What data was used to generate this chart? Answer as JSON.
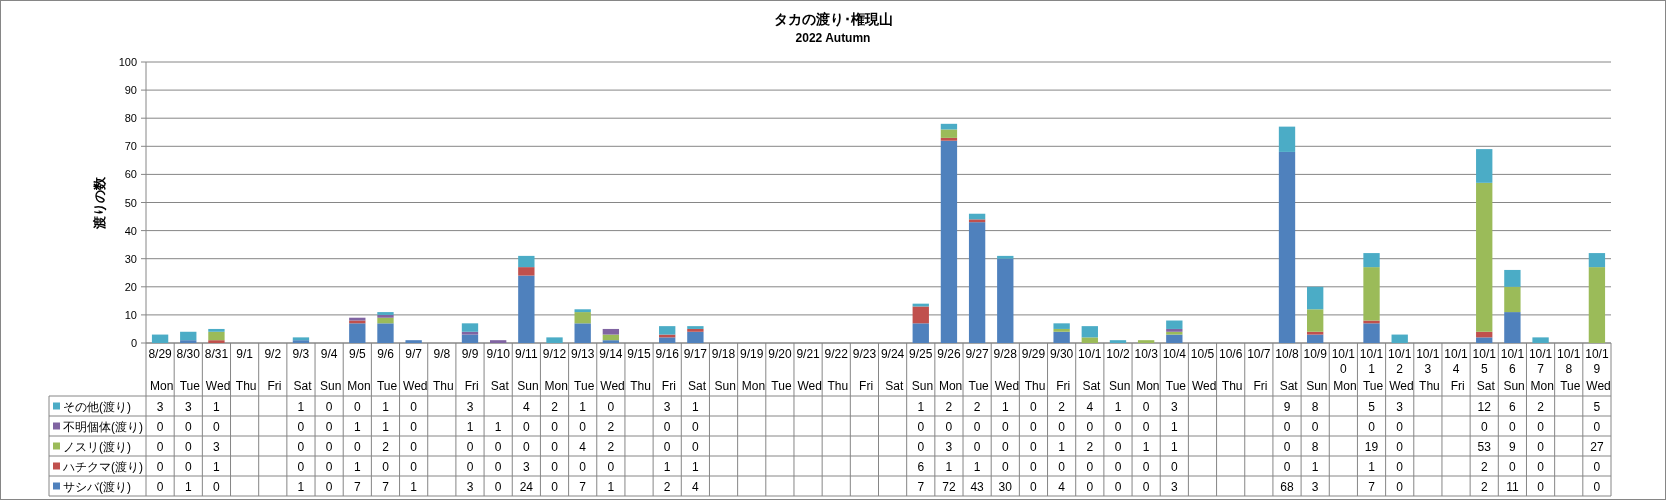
{
  "chart_data": {
    "type": "bar",
    "title": "タカの渡り･権現山",
    "subtitle": "2022 Autumn",
    "ylabel": "渡りの数",
    "stacked": true,
    "categories": [
      "8/29 Mon",
      "8/30 Tue",
      "8/31 Wed",
      "9/1 Thu",
      "9/2 Fri",
      "9/3 Sat",
      "9/4 Sun",
      "9/5 Mon",
      "9/6 Tue",
      "9/7 Wed",
      "9/8 Thu",
      "9/9 Fri",
      "9/10 Sat",
      "9/11 Sun",
      "9/12 Mon",
      "9/13 Tue",
      "9/14 Wed",
      "9/15 Thu",
      "9/16 Fri",
      "9/17 Sat",
      "9/18 Sun",
      "9/19 Mon",
      "9/20 Tue",
      "9/21 Wed",
      "9/22 Thu",
      "9/23 Fri",
      "9/24 Sat",
      "9/25 Sun",
      "9/26 Mon",
      "9/27 Tue",
      "9/28 Wed",
      "9/29 Thu",
      "9/30 Fri",
      "10/1 Sat",
      "10/2 Sun",
      "10/3 Mon",
      "10/4 Tue",
      "10/5 Wed",
      "10/6 Thu",
      "10/7 Fri",
      "10/8 Sat",
      "10/9 Sun",
      "10/10 Mon",
      "10/11 Tue",
      "10/12 Wed",
      "10/13 Thu",
      "10/14 Fri",
      "10/15 Sat",
      "10/16 Sun",
      "10/17 Mon",
      "10/18 Tue",
      "10/19 Wed"
    ],
    "series": [
      {
        "name": "サシバ(渡り)",
        "color": "#4f81bd",
        "values": [
          0,
          1,
          0,
          null,
          null,
          1,
          0,
          7,
          7,
          1,
          null,
          3,
          0,
          24,
          0,
          7,
          1,
          null,
          2,
          4,
          null,
          null,
          null,
          null,
          null,
          null,
          null,
          7,
          72,
          43,
          30,
          0,
          4,
          0,
          0,
          0,
          3,
          null,
          null,
          null,
          68,
          3,
          null,
          7,
          0,
          null,
          null,
          2,
          11,
          0,
          null,
          0
        ]
      },
      {
        "name": "ハチクマ(渡り)",
        "color": "#c0504d",
        "values": [
          0,
          0,
          1,
          null,
          null,
          0,
          0,
          1,
          0,
          0,
          null,
          0,
          0,
          3,
          0,
          0,
          0,
          null,
          1,
          1,
          null,
          null,
          null,
          null,
          null,
          null,
          null,
          6,
          1,
          1,
          0,
          0,
          0,
          0,
          0,
          0,
          0,
          null,
          null,
          null,
          0,
          1,
          null,
          1,
          0,
          null,
          null,
          2,
          0,
          0,
          null,
          0
        ]
      },
      {
        "name": "ノスリ(渡り)",
        "color": "#9bbb59",
        "values": [
          0,
          0,
          3,
          null,
          null,
          0,
          0,
          0,
          2,
          0,
          null,
          0,
          0,
          0,
          0,
          4,
          2,
          null,
          0,
          0,
          null,
          null,
          null,
          null,
          null,
          null,
          null,
          0,
          3,
          0,
          0,
          0,
          1,
          2,
          0,
          1,
          1,
          null,
          null,
          null,
          0,
          8,
          null,
          19,
          0,
          null,
          null,
          53,
          9,
          0,
          null,
          27
        ]
      },
      {
        "name": "不明個体(渡り)",
        "color": "#8064a2",
        "values": [
          0,
          0,
          0,
          null,
          null,
          0,
          0,
          1,
          1,
          0,
          null,
          1,
          1,
          0,
          0,
          0,
          2,
          null,
          0,
          0,
          null,
          null,
          null,
          null,
          null,
          null,
          null,
          0,
          0,
          0,
          0,
          0,
          0,
          0,
          0,
          0,
          1,
          null,
          null,
          null,
          0,
          0,
          null,
          0,
          0,
          null,
          null,
          0,
          0,
          0,
          null,
          0
        ]
      },
      {
        "name": "その他(渡り)",
        "color": "#4bacc6",
        "values": [
          3,
          3,
          1,
          null,
          null,
          1,
          0,
          0,
          1,
          0,
          null,
          3,
          null,
          4,
          2,
          1,
          0,
          null,
          3,
          1,
          null,
          null,
          null,
          null,
          null,
          null,
          null,
          1,
          2,
          2,
          1,
          0,
          2,
          4,
          1,
          0,
          3,
          null,
          null,
          null,
          9,
          8,
          null,
          5,
          3,
          null,
          null,
          12,
          6,
          2,
          null,
          5
        ]
      }
    ],
    "ylim": [
      0,
      100
    ],
    "yticks": [
      0,
      10,
      20,
      30,
      40,
      50,
      60,
      70,
      80,
      90,
      100
    ],
    "grid": "y",
    "legend": "bottom",
    "data_labels": true
  }
}
